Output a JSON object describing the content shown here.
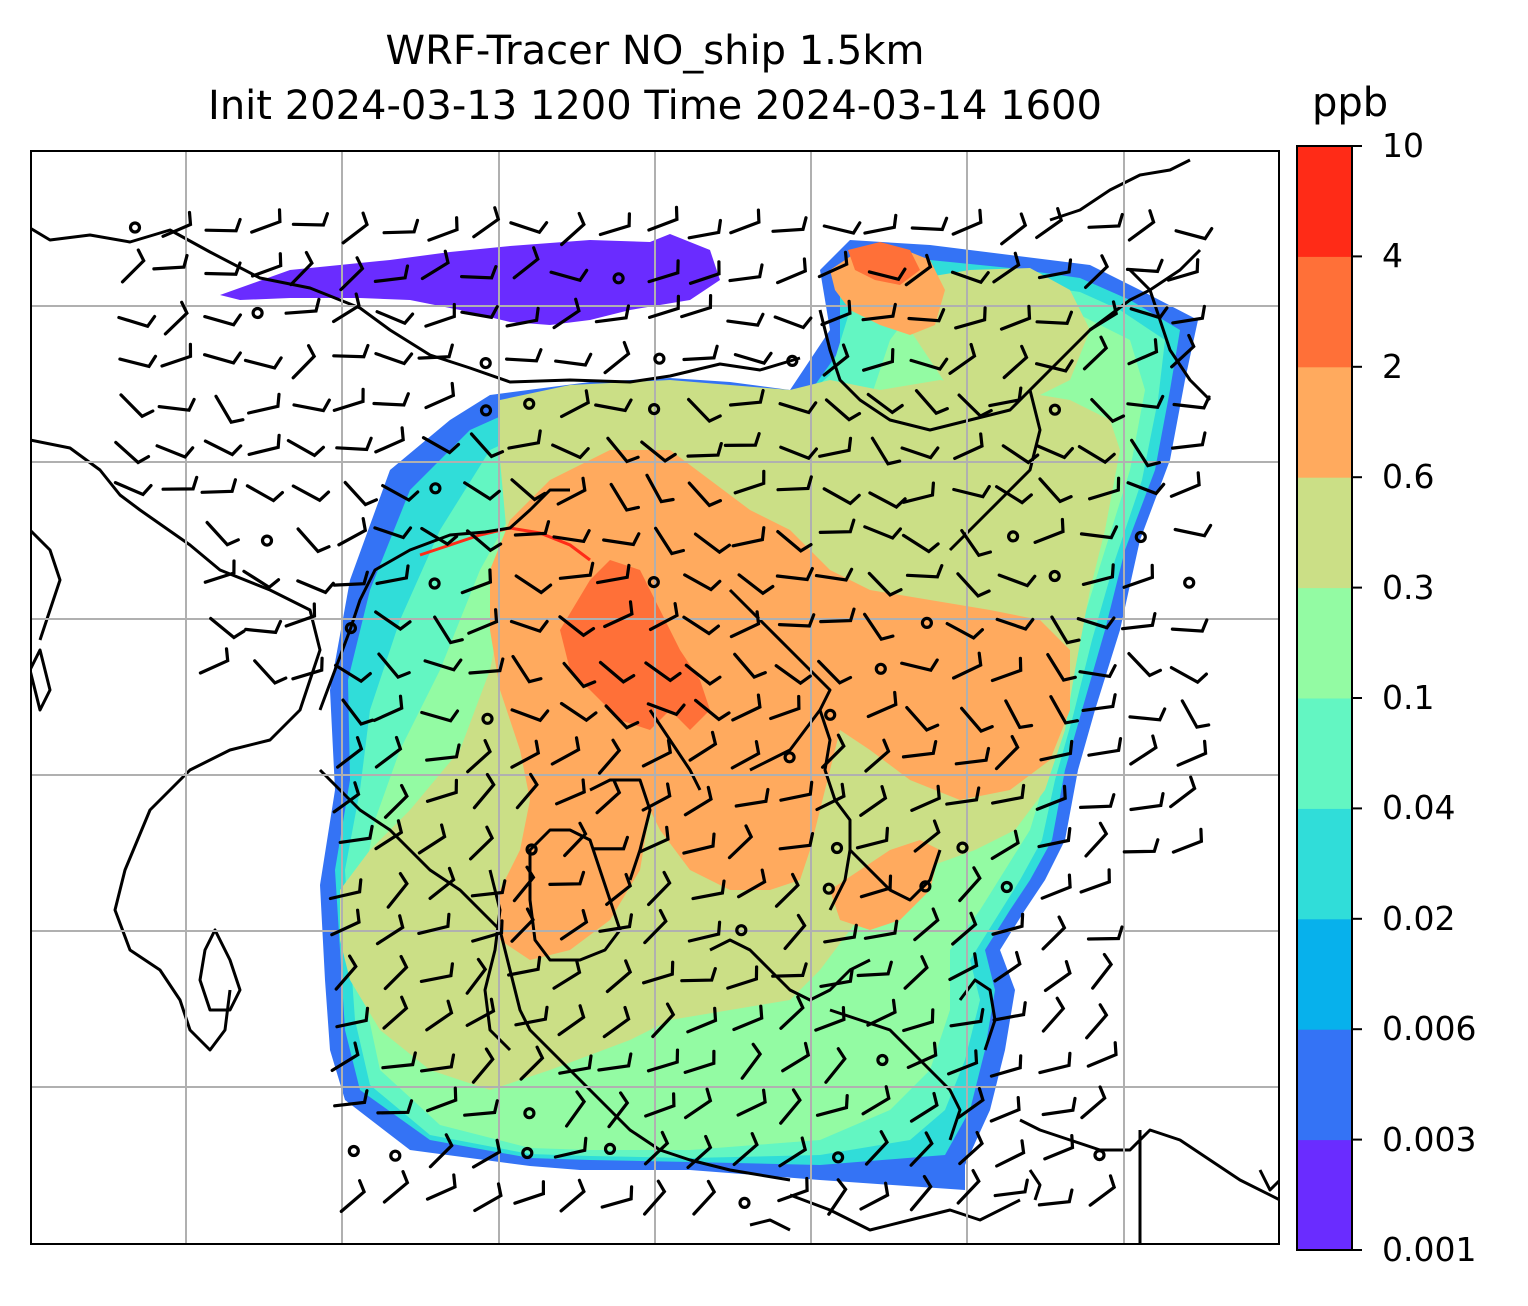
{
  "title": {
    "line1": "WRF-Tracer NO_ship 1.5km",
    "line2": "Init 2024-03-13 1200 Time 2024-03-14 1600"
  },
  "colorbar": {
    "unit": "ppb",
    "ticks": [
      "0.001",
      "0.003",
      "0.006",
      "0.02",
      "0.04",
      "0.1",
      "0.3",
      "0.6",
      "2",
      "4",
      "10"
    ],
    "colors": [
      "#6a2cff",
      "#3473f5",
      "#07b1ec",
      "#30ddd9",
      "#63f6c2",
      "#93fba3",
      "#cbdf86",
      "#ffaa5e",
      "#ff7038",
      "#ff2b17"
    ]
  },
  "map": {
    "field": "NO_ship tracer concentration at 1.5 km",
    "gridlines": true,
    "wind_barbs": true,
    "coastlines": true
  }
}
